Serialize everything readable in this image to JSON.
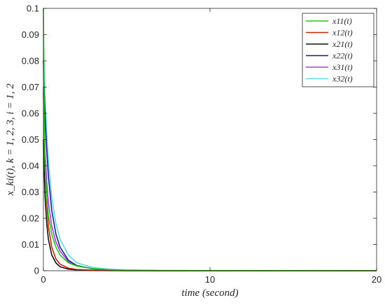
{
  "chart_data": {
    "type": "line",
    "xlabel": "time (second)",
    "ylabel": "x_ki(t), k = 1, 2, 3, i = 1, 2",
    "xlim": [
      0,
      20
    ],
    "ylim": [
      0,
      0.1
    ],
    "x_ticks": [
      0,
      10,
      20
    ],
    "x_tick_labels": [
      "0",
      "10",
      "20"
    ],
    "y_ticks": [
      0,
      0.01,
      0.02,
      0.03,
      0.04,
      0.05,
      0.06,
      0.07,
      0.08,
      0.09,
      0.1
    ],
    "y_tick_labels": [
      "0",
      "0.01",
      "0.02",
      "0.03",
      "0.04",
      "0.05",
      "0.06",
      "0.07",
      "0.08",
      "0.09",
      "0.1"
    ],
    "grid": false,
    "legend_position": "top-right",
    "x": [
      0,
      0.02,
      0.05,
      0.1,
      0.2,
      0.3,
      0.5,
      0.75,
      1.0,
      1.5,
      2,
      3,
      4,
      5,
      7,
      10,
      15,
      20
    ],
    "series": [
      {
        "name": "x11(t)",
        "color": "#22cc11",
        "values": [
          0.1,
          0.085,
          0.06,
          0.04,
          0.028,
          0.021,
          0.014,
          0.009,
          0.006,
          0.003,
          0.0018,
          0.0008,
          0.0004,
          0.0002,
          0.0001,
          3e-05,
          1e-05,
          0
        ]
      },
      {
        "name": "x12(t)",
        "color": "#cc2200",
        "values": [
          0.07,
          0.062,
          0.052,
          0.04,
          0.026,
          0.017,
          0.009,
          0.0045,
          0.0025,
          0.001,
          0.0005,
          0.0002,
          0.0001,
          5e-05,
          2e-05,
          1e-05,
          0,
          0
        ]
      },
      {
        "name": "x21(t)",
        "color": "#111111",
        "values": [
          0.05,
          0.044,
          0.037,
          0.028,
          0.018,
          0.012,
          0.006,
          0.003,
          0.0015,
          0.0006,
          0.0003,
          0.0001,
          5e-05,
          2e-05,
          1e-05,
          0,
          0,
          0
        ]
      },
      {
        "name": "x22(t)",
        "color": "#1a1a8c",
        "values": [
          0.08,
          0.075,
          0.068,
          0.059,
          0.046,
          0.036,
          0.023,
          0.014,
          0.009,
          0.004,
          0.002,
          0.0007,
          0.0003,
          0.00015,
          5e-05,
          2e-05,
          1e-05,
          0
        ]
      },
      {
        "name": "x31(t)",
        "color": "#a040e0",
        "values": [
          0.068,
          0.061,
          0.054,
          0.045,
          0.034,
          0.026,
          0.017,
          0.011,
          0.0075,
          0.0035,
          0.0018,
          0.0007,
          0.0003,
          0.00015,
          5e-05,
          2e-05,
          1e-05,
          0
        ]
      },
      {
        "name": "x32(t)",
        "color": "#55ddee",
        "values": [
          0.09,
          0.084,
          0.076,
          0.066,
          0.052,
          0.042,
          0.028,
          0.018,
          0.012,
          0.006,
          0.003,
          0.0012,
          0.0006,
          0.0003,
          0.0001,
          4e-05,
          1e-05,
          0
        ]
      }
    ]
  }
}
